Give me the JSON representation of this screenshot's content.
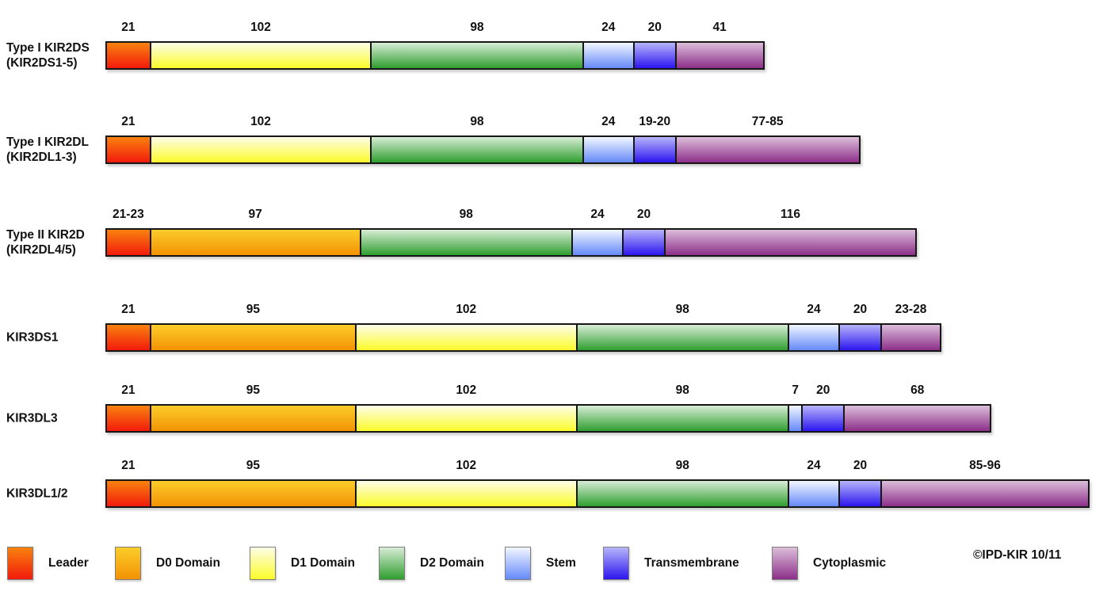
{
  "copyright": "©IPD-KIR 10/11",
  "colors": {
    "leader": {
      "top": "#F9820E",
      "bottom": "#F21A0C"
    },
    "d0": {
      "top": "#FBCD2A",
      "bottom": "#F39204"
    },
    "d1": {
      "top": "#FDFDE8",
      "bottom": "#FBFB2A"
    },
    "d2": {
      "top": "#D8ECD6",
      "bottom": "#2F9E2F"
    },
    "stem": {
      "top": "#F2F7FF",
      "bottom": "#6589F8"
    },
    "tm": {
      "top": "#B6B5FB",
      "bottom": "#2C15EF"
    },
    "cyto": {
      "top": "#DCBEDA",
      "bottom": "#8C2F89"
    }
  },
  "legend": [
    {
      "key": "leader",
      "label": "Leader"
    },
    {
      "key": "d0",
      "label": "D0 Domain"
    },
    {
      "key": "d1",
      "label": "D1 Domain"
    },
    {
      "key": "d2",
      "label": "D2 Domain"
    },
    {
      "key": "stem",
      "label": "Stem"
    },
    {
      "key": "tm",
      "label": "Transmembrane"
    },
    {
      "key": "cyto",
      "label": "Cytoplasmic"
    }
  ],
  "rows": [
    {
      "name": "Type I KIR2DS",
      "subname": "(KIR2DS1-5)",
      "segments": [
        {
          "domain": "leader",
          "label": "21",
          "aa": 21
        },
        {
          "domain": "d1",
          "label": "102",
          "aa": 102
        },
        {
          "domain": "d2",
          "label": "98",
          "aa": 98
        },
        {
          "domain": "stem",
          "label": "24",
          "aa": 24
        },
        {
          "domain": "tm",
          "label": "20",
          "aa": 20
        },
        {
          "domain": "cyto",
          "label": "41",
          "aa": 41
        }
      ]
    },
    {
      "name": "Type I KIR2DL",
      "subname": "(KIR2DL1-3)",
      "segments": [
        {
          "domain": "leader",
          "label": "21",
          "aa": 21
        },
        {
          "domain": "d1",
          "label": "102",
          "aa": 102
        },
        {
          "domain": "d2",
          "label": "98",
          "aa": 98
        },
        {
          "domain": "stem",
          "label": "24",
          "aa": 24
        },
        {
          "domain": "tm",
          "label": "19-20",
          "aa": 20
        },
        {
          "domain": "cyto",
          "label": "77-85",
          "aa": 85
        }
      ]
    },
    {
      "name": "Type II KIR2D",
      "subname": "(KIR2DL4/5)",
      "segments": [
        {
          "domain": "leader",
          "label": "21-23",
          "aa": 21
        },
        {
          "domain": "d0",
          "label": "97",
          "aa": 97
        },
        {
          "domain": "d2",
          "label": "98",
          "aa": 98
        },
        {
          "domain": "stem",
          "label": "24",
          "aa": 24
        },
        {
          "domain": "tm",
          "label": "20",
          "aa": 20
        },
        {
          "domain": "cyto",
          "label": "116",
          "aa": 116
        }
      ]
    },
    {
      "name": "KIR3DS1",
      "subname": "",
      "segments": [
        {
          "domain": "leader",
          "label": "21",
          "aa": 21
        },
        {
          "domain": "d0",
          "label": "95",
          "aa": 95
        },
        {
          "domain": "d1",
          "label": "102",
          "aa": 102
        },
        {
          "domain": "d2",
          "label": "98",
          "aa": 98
        },
        {
          "domain": "stem",
          "label": "24",
          "aa": 24
        },
        {
          "domain": "tm",
          "label": "20",
          "aa": 20
        },
        {
          "domain": "cyto",
          "label": "23-28",
          "aa": 28
        }
      ]
    },
    {
      "name": "KIR3DL3",
      "subname": "",
      "segments": [
        {
          "domain": "leader",
          "label": "21",
          "aa": 21
        },
        {
          "domain": "d0",
          "label": "95",
          "aa": 95
        },
        {
          "domain": "d1",
          "label": "102",
          "aa": 102
        },
        {
          "domain": "d2",
          "label": "98",
          "aa": 98
        },
        {
          "domain": "stem",
          "label": "7",
          "aa": 7
        },
        {
          "domain": "tm",
          "label": "20",
          "aa": 20
        },
        {
          "domain": "cyto",
          "label": "68",
          "aa": 68
        }
      ]
    },
    {
      "name": "KIR3DL1/2",
      "subname": "",
      "segments": [
        {
          "domain": "leader",
          "label": "21",
          "aa": 21
        },
        {
          "domain": "d0",
          "label": "95",
          "aa": 95
        },
        {
          "domain": "d1",
          "label": "102",
          "aa": 102
        },
        {
          "domain": "d2",
          "label": "98",
          "aa": 98
        },
        {
          "domain": "stem",
          "label": "24",
          "aa": 24
        },
        {
          "domain": "tm",
          "label": "20",
          "aa": 20
        },
        {
          "domain": "cyto",
          "label": "85-96",
          "aa": 96
        }
      ]
    }
  ]
}
